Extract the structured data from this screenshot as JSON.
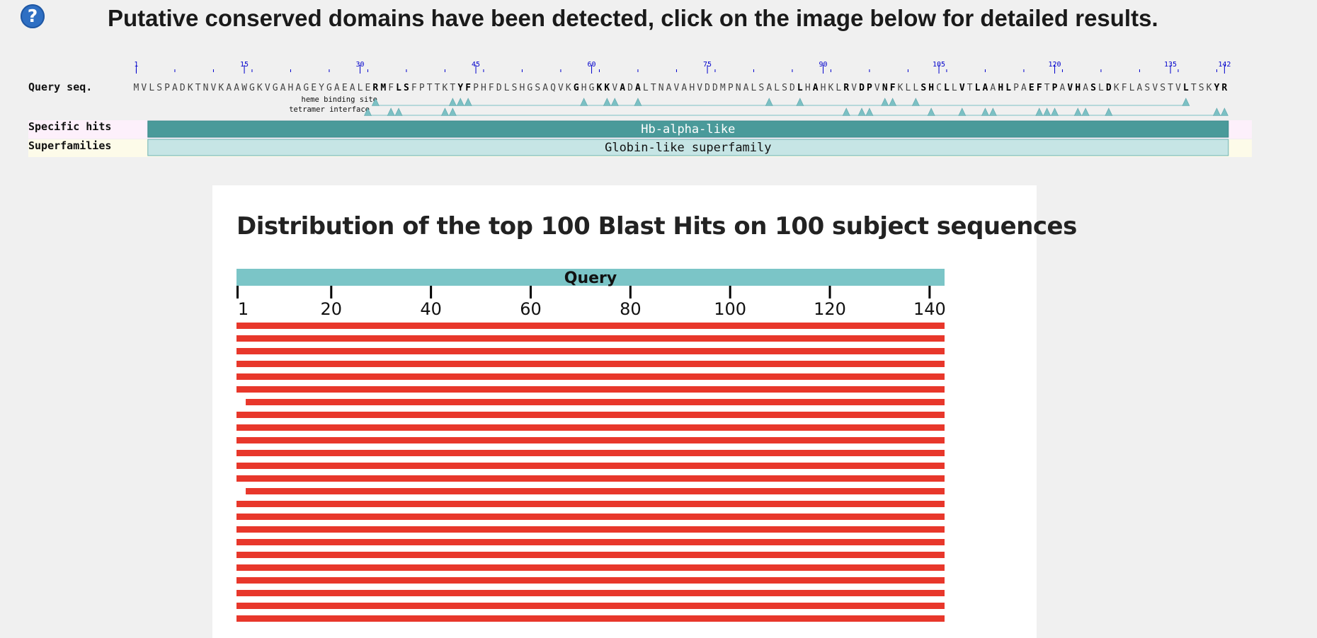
{
  "header": {
    "help_icon_glyph": "?",
    "headline": "Putative conserved domains have been detected, click on the image below for detailed results."
  },
  "cdd": {
    "row_labels": {
      "query": "Query seq.",
      "specific": "Specific hits",
      "superfamilies": "Superfamilies"
    },
    "feature_labels": {
      "heme": "heme binding site",
      "tetramer": "tetramer interface"
    },
    "sequence": "MVLSPADKTNVKAAWGKVGAHAGEYGAEALERMFLSFPTTKTYFPHFDLSHGSAQVKGHGKKVADALTNAVAHVDDMPNALSALSDLHAHKLRVDPVNFKLLSHCLLVTLAAHLPAEFTPAVHASLDKFLASVSTVLTSKYR",
    "ruler_labels": [
      1,
      15,
      30,
      45,
      60,
      75,
      90,
      105,
      120,
      135,
      142
    ],
    "bold_positions": [
      32,
      33,
      35,
      36,
      43,
      44,
      58,
      61,
      62,
      64,
      66,
      87,
      89,
      93,
      95,
      96,
      98,
      99,
      103,
      104,
      106,
      108,
      110,
      111,
      113,
      114,
      117,
      118,
      120,
      122,
      123,
      125,
      127,
      137,
      141,
      142
    ],
    "heme_sites": [
      32,
      42,
      43,
      44,
      59,
      62,
      63,
      66,
      83,
      87,
      98,
      99,
      102,
      137
    ],
    "tetramer_sites": [
      31,
      34,
      35,
      41,
      42,
      93,
      95,
      96,
      104,
      108,
      111,
      112,
      118,
      119,
      120,
      123,
      124,
      127,
      141,
      142
    ],
    "specific_hit": {
      "name": "Hb-alpha-like",
      "start": 3,
      "end": 142
    },
    "superfamily": {
      "name": "Globin-like superfamily",
      "start": 3,
      "end": 142
    },
    "colors": {
      "specific_bar": "#4a9a9a",
      "superfamily_bar": "#c6e5e5",
      "triangle": "#7cc0c4",
      "ruler_blue": "#0000cc",
      "specific_row_bg": "#fdf0fb",
      "superfamily_row_bg": "#fdfbe9"
    }
  },
  "distribution": {
    "title": "Distribution of the top 100 Blast Hits on 100 subject sequences",
    "query_label": "Query",
    "query_length": 142,
    "ticks": [
      1,
      20,
      40,
      60,
      80,
      100,
      120,
      140
    ],
    "hit_color": "#e8372b",
    "query_color": "#7bc5c7",
    "hits": [
      [
        1,
        142
      ],
      [
        1,
        142
      ],
      [
        1,
        142
      ],
      [
        1,
        142
      ],
      [
        1,
        142
      ],
      [
        1,
        142
      ],
      [
        2,
        142
      ],
      [
        1,
        142
      ],
      [
        1,
        142
      ],
      [
        1,
        142
      ],
      [
        1,
        142
      ],
      [
        1,
        142
      ],
      [
        1,
        142
      ],
      [
        2,
        142
      ],
      [
        1,
        142
      ],
      [
        1,
        142
      ],
      [
        1,
        142
      ],
      [
        1,
        142
      ],
      [
        1,
        142
      ],
      [
        1,
        142
      ],
      [
        1,
        142
      ],
      [
        1,
        142
      ],
      [
        1,
        142
      ],
      [
        1,
        142
      ]
    ]
  }
}
